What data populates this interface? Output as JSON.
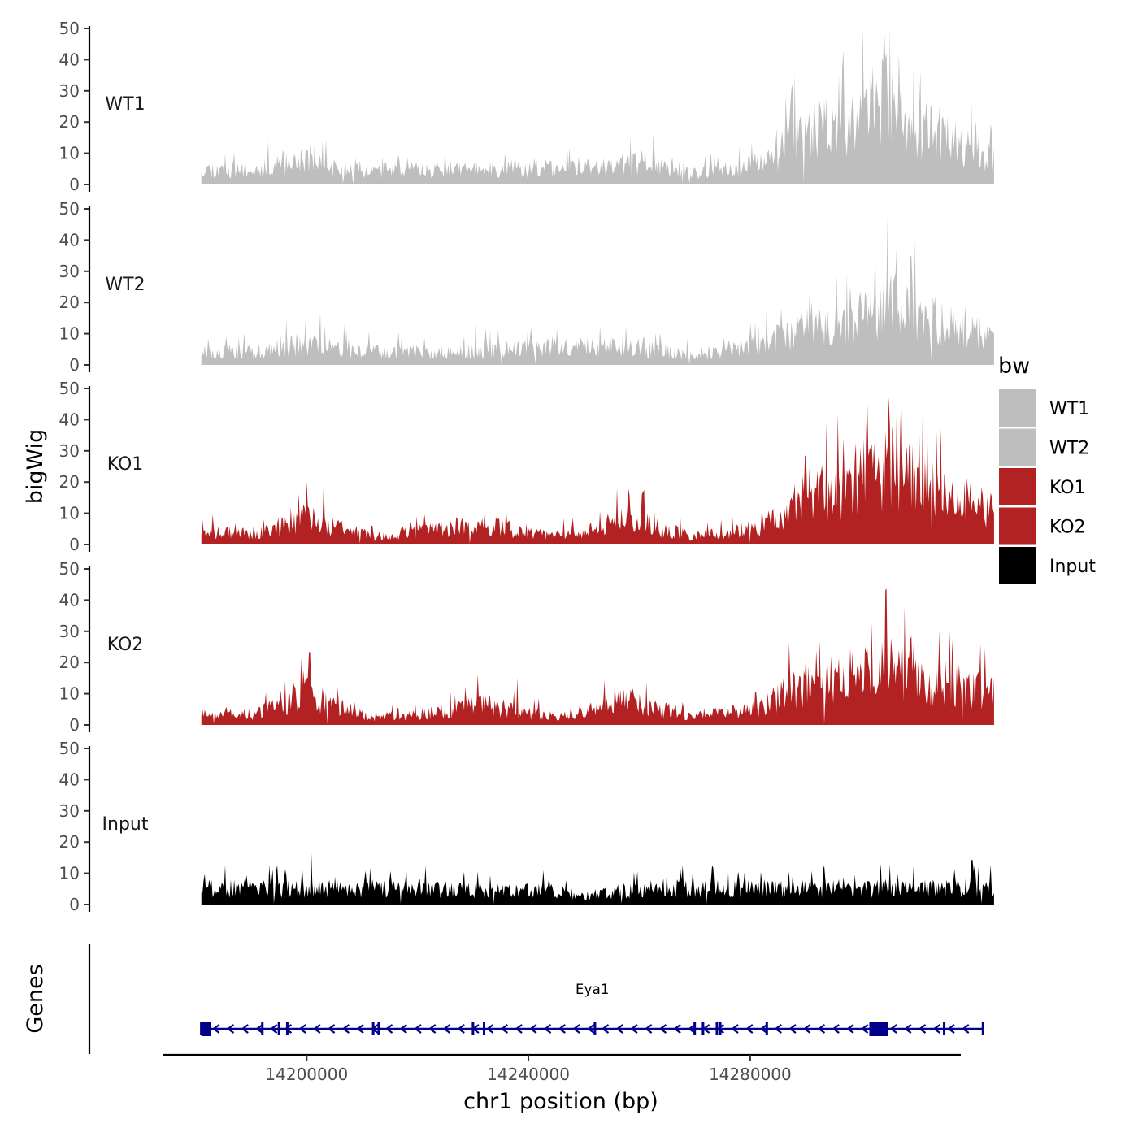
{
  "chart_data": {
    "type": "area",
    "title": "",
    "xlabel": "chr1 position (bp)",
    "ylabel": "bigWig",
    "genes_label": "Genes",
    "xlim": [
      14174000,
      14318000
    ],
    "ylim": [
      0,
      50
    ],
    "y_ticks": [
      "0",
      "10",
      "20",
      "30",
      "40",
      "50"
    ],
    "x_ticks": [
      {
        "value": 14200000,
        "label": "14200000"
      },
      {
        "value": 14240000,
        "label": "14240000"
      },
      {
        "value": 14280000,
        "label": "14280000"
      }
    ],
    "grid": false,
    "legend": {
      "title": "bw",
      "position": "right",
      "items": [
        {
          "label": "WT1",
          "color": "#BEBEBE"
        },
        {
          "label": "WT2",
          "color": "#BEBEBE"
        },
        {
          "label": "KO1",
          "color": "#B22222"
        },
        {
          "label": "KO2",
          "color": "#B22222"
        },
        {
          "label": "Input",
          "color": "#000000"
        }
      ]
    },
    "series": [
      {
        "name": "WT1",
        "color": "#BEBEBE",
        "xstart": 14181000,
        "xend": 14324000,
        "seed": 11,
        "profile": [
          [
            14181000,
            6
          ],
          [
            14190000,
            5
          ],
          [
            14197000,
            8
          ],
          [
            14201000,
            10
          ],
          [
            14206000,
            5
          ],
          [
            14230000,
            6
          ],
          [
            14255000,
            6
          ],
          [
            14262000,
            9
          ],
          [
            14270000,
            4
          ],
          [
            14278000,
            6
          ],
          [
            14284000,
            9
          ],
          [
            14288000,
            18
          ],
          [
            14296000,
            24
          ],
          [
            14304000,
            30
          ],
          [
            14308000,
            24
          ],
          [
            14318000,
            15
          ],
          [
            14324000,
            10
          ]
        ],
        "peaks": [
          [
            14201500,
            14
          ],
          [
            14262500,
            16
          ],
          [
            14304500,
            42
          ],
          [
            14296000,
            36
          ],
          [
            14309500,
            38
          ]
        ]
      },
      {
        "name": "WT2",
        "color": "#BEBEBE",
        "xstart": 14181000,
        "xend": 14324000,
        "seed": 23,
        "profile": [
          [
            14181000,
            5
          ],
          [
            14192000,
            5
          ],
          [
            14197000,
            7
          ],
          [
            14202000,
            8
          ],
          [
            14210000,
            5
          ],
          [
            14228000,
            5
          ],
          [
            14235000,
            6
          ],
          [
            14258000,
            7
          ],
          [
            14270000,
            4
          ],
          [
            14282000,
            7
          ],
          [
            14288000,
            13
          ],
          [
            14297000,
            15
          ],
          [
            14302000,
            20
          ],
          [
            14306000,
            26
          ],
          [
            14310000,
            18
          ],
          [
            14320000,
            13
          ],
          [
            14324000,
            10
          ]
        ],
        "peaks": [
          [
            14230500,
            14
          ],
          [
            14283000,
            18
          ],
          [
            14298000,
            26
          ],
          [
            14302500,
            42
          ],
          [
            14306500,
            39
          ],
          [
            14309000,
            35
          ]
        ]
      },
      {
        "name": "KO1",
        "color": "#B22222",
        "xstart": 14181000,
        "xend": 14324000,
        "seed": 37,
        "profile": [
          [
            14181000,
            5
          ],
          [
            14190000,
            4
          ],
          [
            14196000,
            7
          ],
          [
            14200000,
            10
          ],
          [
            14205000,
            7
          ],
          [
            14212000,
            3
          ],
          [
            14225000,
            6
          ],
          [
            14232000,
            8
          ],
          [
            14238000,
            5
          ],
          [
            14244000,
            3
          ],
          [
            14252000,
            6
          ],
          [
            14258000,
            10
          ],
          [
            14264000,
            6
          ],
          [
            14270000,
            3
          ],
          [
            14276000,
            5
          ],
          [
            14282000,
            6
          ],
          [
            14286000,
            12
          ],
          [
            14290000,
            18
          ],
          [
            14296000,
            20
          ],
          [
            14300000,
            26
          ],
          [
            14305000,
            30
          ],
          [
            14310000,
            24
          ],
          [
            14318000,
            18
          ],
          [
            14324000,
            12
          ]
        ],
        "peaks": [
          [
            14200000,
            21
          ],
          [
            14203000,
            20
          ],
          [
            14258000,
            17
          ],
          [
            14290000,
            29
          ],
          [
            14305000,
            48
          ],
          [
            14301000,
            37
          ],
          [
            14312000,
            39
          ]
        ]
      },
      {
        "name": "KO2",
        "color": "#B22222",
        "xstart": 14181000,
        "xend": 14324000,
        "seed": 53,
        "profile": [
          [
            14181000,
            5
          ],
          [
            14190000,
            4
          ],
          [
            14196000,
            7
          ],
          [
            14200000,
            12
          ],
          [
            14205000,
            7
          ],
          [
            14212000,
            3
          ],
          [
            14225000,
            5
          ],
          [
            14232000,
            8
          ],
          [
            14238000,
            5
          ],
          [
            14245000,
            3
          ],
          [
            14252000,
            6
          ],
          [
            14258000,
            9
          ],
          [
            14264000,
            6
          ],
          [
            14270000,
            3
          ],
          [
            14275000,
            5
          ],
          [
            14280000,
            5
          ],
          [
            14285000,
            10
          ],
          [
            14290000,
            15
          ],
          [
            14296000,
            17
          ],
          [
            14301000,
            20
          ],
          [
            14305000,
            22
          ],
          [
            14310000,
            17
          ],
          [
            14318000,
            15
          ],
          [
            14324000,
            12
          ]
        ],
        "peaks": [
          [
            14200500,
            25
          ],
          [
            14238000,
            16
          ],
          [
            14292000,
            24
          ],
          [
            14304500,
            44
          ],
          [
            14302000,
            35
          ],
          [
            14309000,
            29
          ]
        ]
      },
      {
        "name": "Input",
        "color": "#000000",
        "xstart": 14181000,
        "xend": 14324000,
        "seed": 71,
        "profile": [
          [
            14181000,
            6
          ],
          [
            14200000,
            6
          ],
          [
            14220000,
            6
          ],
          [
            14245000,
            5
          ],
          [
            14250000,
            3
          ],
          [
            14260000,
            6
          ],
          [
            14280000,
            6
          ],
          [
            14300000,
            6
          ],
          [
            14324000,
            6
          ]
        ],
        "peaks": [
          [
            14200800,
            18
          ],
          [
            14276000,
            14
          ],
          [
            14320000,
            15
          ]
        ]
      }
    ],
    "gene": {
      "name": "Eya1",
      "start": 14181000,
      "end": 14322000,
      "strand": "-",
      "color": "#00008B",
      "exons": [
        14181000,
        14192000,
        14195000,
        14196500,
        14212000,
        14213000,
        14230000,
        14232000,
        14252000,
        14270000,
        14271500,
        14274000,
        14274600,
        14283000,
        14315000
      ],
      "big_exons": [
        [
          14181000,
          14182700
        ],
        [
          14301500,
          14304800
        ]
      ]
    }
  }
}
